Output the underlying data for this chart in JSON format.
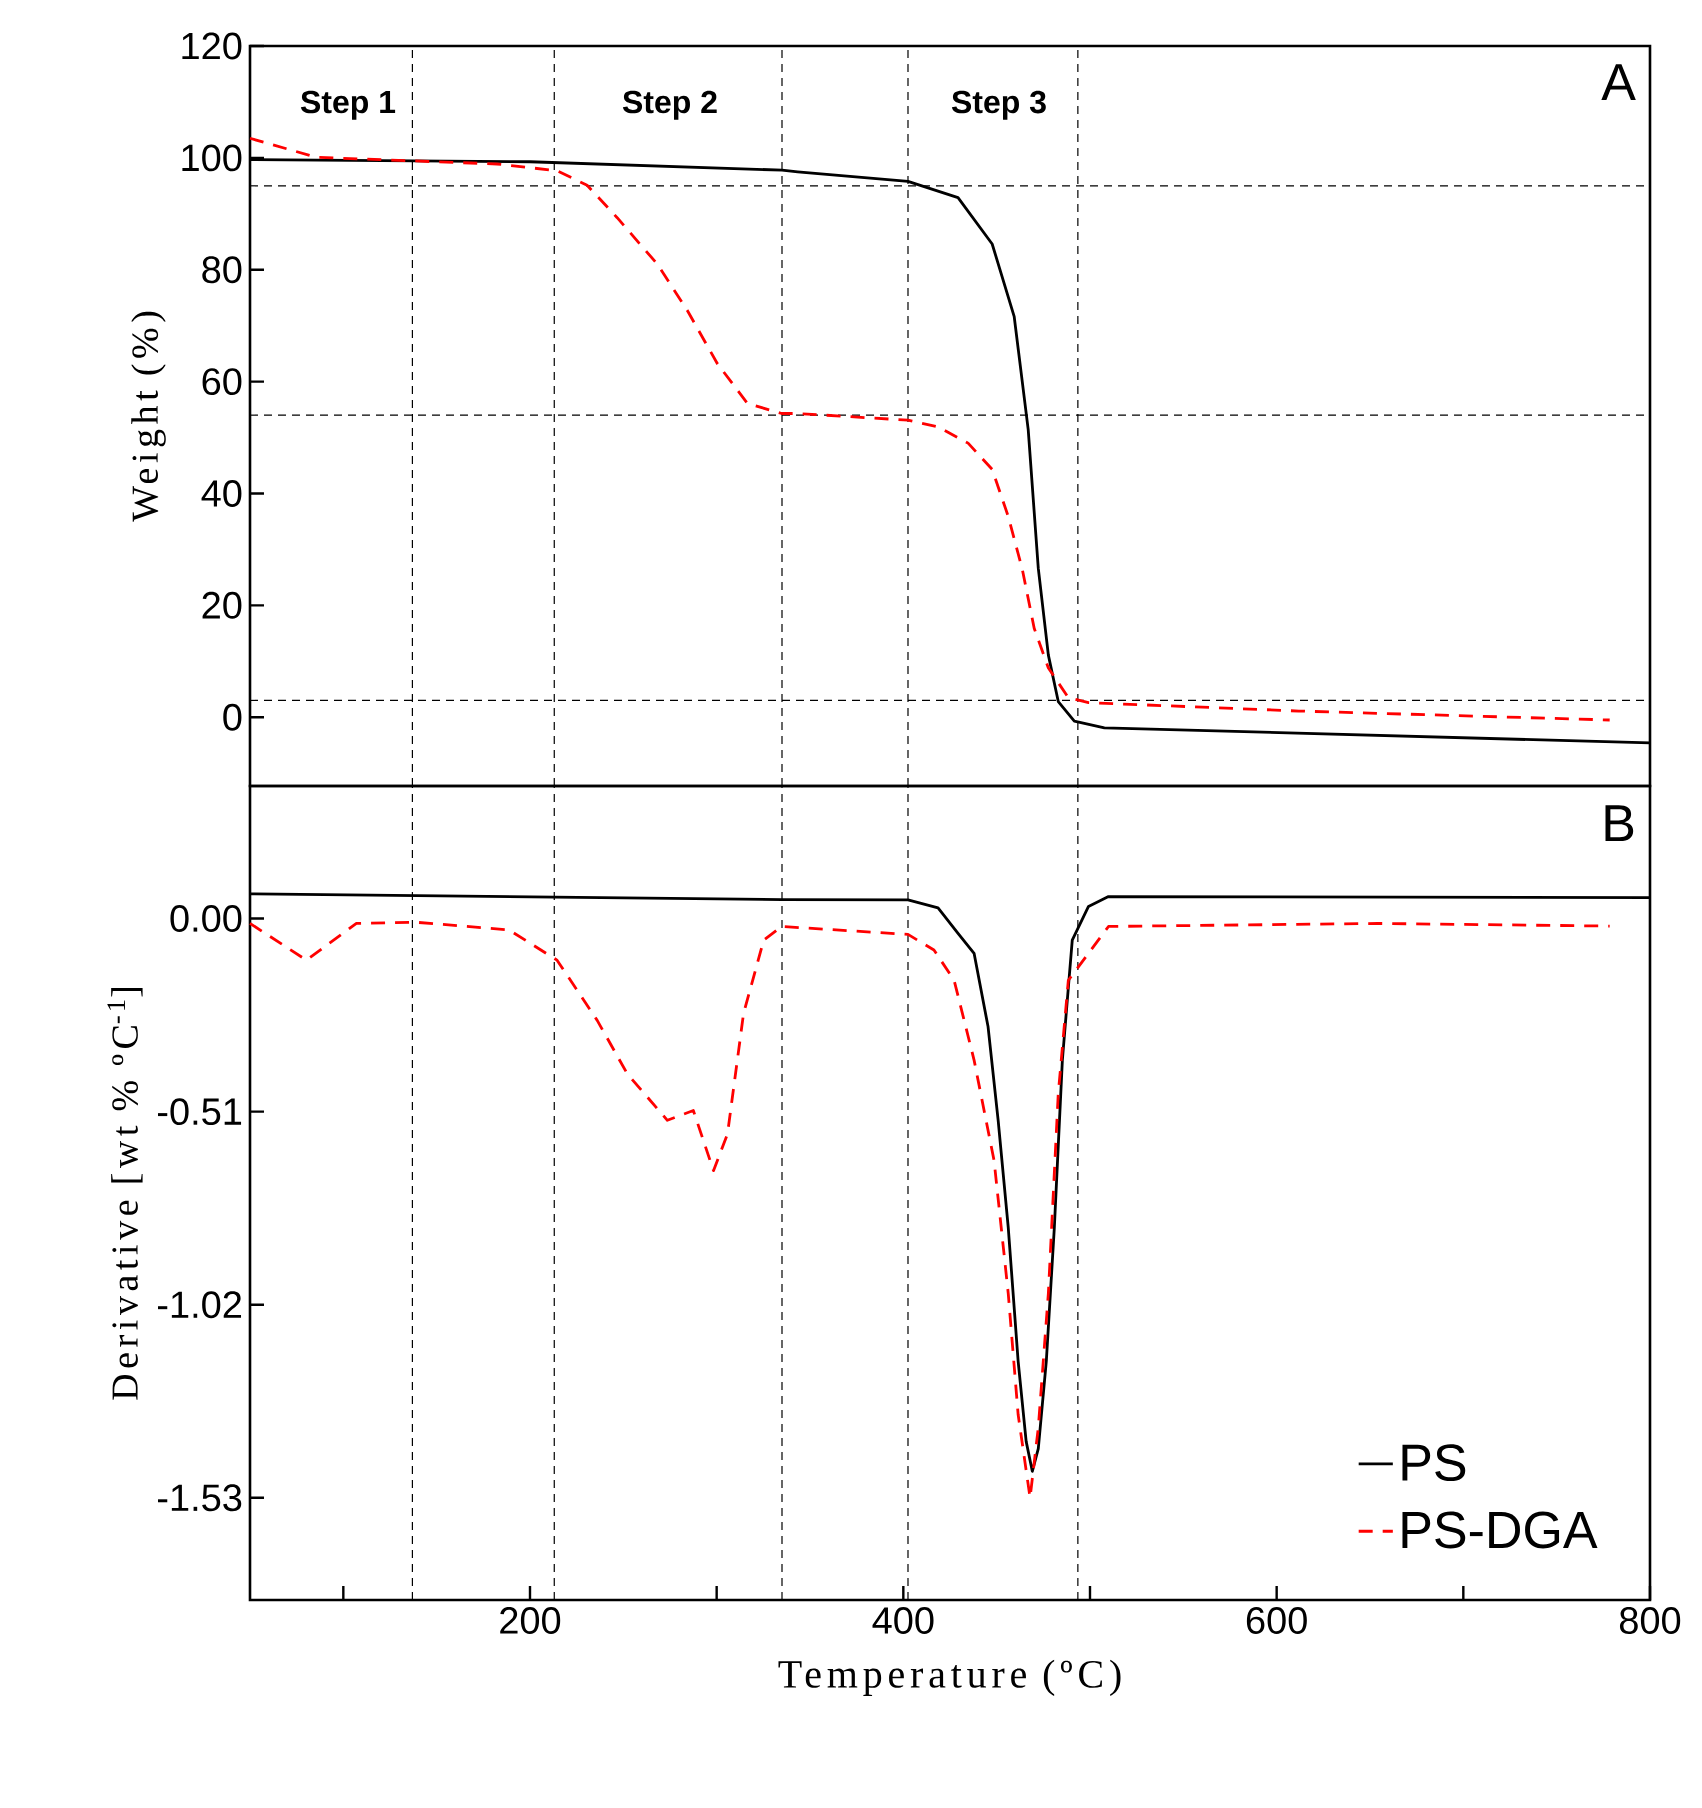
{
  "chart_data": [
    {
      "type": "line",
      "ylabel": "Weight (%)",
      "xlim": [
        50,
        800
      ],
      "ylim": [
        -12.3,
        120
      ],
      "yticks": [
        0,
        20,
        40,
        60,
        80,
        100,
        120
      ],
      "tick_labels": "y",
      "series": [
        {
          "color": "#000000",
          "line_style": "solid",
          "x": [
            50,
            200,
            335,
            343.4,
            402.5,
            429.3,
            447.6,
            459.4,
            466.9,
            472.3,
            477.7,
            483.0,
            491.6,
            507.7,
            800
          ],
          "values": [
            99.7,
            99.3,
            97.8,
            97.5,
            95.8,
            92.9,
            84.6,
            71.6,
            51.4,
            26.6,
            11.1,
            2.8,
            -0.7,
            -1.9,
            -4.6
          ]
        },
        {
          "color": "#ff0000",
          "line_style": "dashed",
          "x": [
            50,
            85.6,
            182.3,
            214.5,
            230.6,
            246.7,
            268.2,
            284.3,
            300.4,
            316.5,
            334.8,
            343.4,
            402.5,
            418.6,
            434.7,
            447.6,
            456.2,
            463.7,
            470.1,
            477.7,
            488.4,
            499.2,
            611.9,
            778.4
          ],
          "values": [
            103.5,
            100.1,
            98.9,
            97.7,
            95.1,
            89.3,
            81.0,
            72.7,
            63.2,
            56.1,
            54.3,
            54.3,
            53.1,
            51.9,
            49.0,
            44.3,
            35.9,
            26.5,
            15.9,
            8.8,
            3.5,
            2.6,
            1.1,
            -0.5
          ]
        }
      ],
      "ref_lines": [
        {
          "axis": "x",
          "value": 137
        },
        {
          "axis": "x",
          "value": 213
        },
        {
          "axis": "x",
          "value": 335
        },
        {
          "axis": "x",
          "value": 402.5
        },
        {
          "axis": "x",
          "value": 493.5
        },
        {
          "axis": "y",
          "value": 95
        },
        {
          "axis": "y",
          "value": 54
        },
        {
          "axis": "y",
          "value": 3
        }
      ],
      "annotations": [
        "Step 1",
        "Step 2",
        "Step 3",
        "A"
      ]
    },
    {
      "type": "line",
      "xlabel": "Temperature (ºC)",
      "ylabel": "Derivative [wt % ºC$^{-1}$]",
      "xlim": [
        50,
        800
      ],
      "ylim": [
        -1.8,
        0.35
      ],
      "xticks": [
        {
          "value": 100,
          "label": null
        },
        200,
        {
          "value": 300,
          "label": null
        },
        400,
        {
          "value": 500,
          "label": null
        },
        600,
        {
          "value": 700,
          "label": null
        },
        800
      ],
      "yticks": [
        {
          "value": -1.53,
          "label": "-1.53"
        },
        {
          "value": -1.02,
          "label": "-1.02"
        },
        {
          "value": -0.51,
          "label": "-0.51"
        },
        {
          "value": 0,
          "label": "0.00"
        }
      ],
      "legend": "bottom right",
      "series": [
        {
          "name": "PS",
          "color": "#000000",
          "line_style": "solid",
          "x": [
            50,
            335,
            402.5,
            418.6,
            429.3,
            437.9,
            445.4,
            450.8,
            456.2,
            461.5,
            465.8,
            469.1,
            472.3,
            476.6,
            480.9,
            485.2,
            490.5,
            499.2,
            509.9,
            800
          ],
          "values": [
            0.065,
            0.05,
            0.049,
            0.028,
            -0.039,
            -0.092,
            -0.286,
            -0.533,
            -0.816,
            -1.169,
            -1.381,
            -1.46,
            -1.4,
            -1.169,
            -0.816,
            -0.374,
            -0.057,
            0.032,
            0.058,
            0.055
          ]
        },
        {
          "name": "PS-DGA",
          "color": "#ff0000",
          "line_style": "dashed",
          "x": [
            50,
            80.2,
            107,
            139.3,
            188.7,
            214.5,
            236,
            252.1,
            273.6,
            287.5,
            298.3,
            305.8,
            314.4,
            325.2,
            334.8,
            402.5,
            416.4,
            427.2,
            437.9,
            448.6,
            456.2,
            461.5,
            467.9,
            472.3,
            477.7,
            483.0,
            488.4,
            499.2,
            509.9,
            654,
            778.4
          ],
          "values": [
            -0.013,
            -0.11,
            -0.013,
            -0.01,
            -0.03,
            -0.11,
            -0.269,
            -0.41,
            -0.533,
            -0.507,
            -0.666,
            -0.569,
            -0.251,
            -0.057,
            -0.021,
            -0.042,
            -0.083,
            -0.163,
            -0.374,
            -0.639,
            -0.99,
            -1.31,
            -1.53,
            -1.345,
            -0.99,
            -0.463,
            -0.163,
            -0.092,
            -0.021,
            -0.013,
            -0.02
          ]
        }
      ],
      "ref_lines": [
        {
          "axis": "x",
          "value": 137
        },
        {
          "axis": "x",
          "value": 213
        },
        {
          "axis": "x",
          "value": 335
        },
        {
          "axis": "x",
          "value": 402.5
        },
        {
          "axis": "x",
          "value": 493.5
        }
      ],
      "annotations": [
        "B"
      ]
    }
  ]
}
